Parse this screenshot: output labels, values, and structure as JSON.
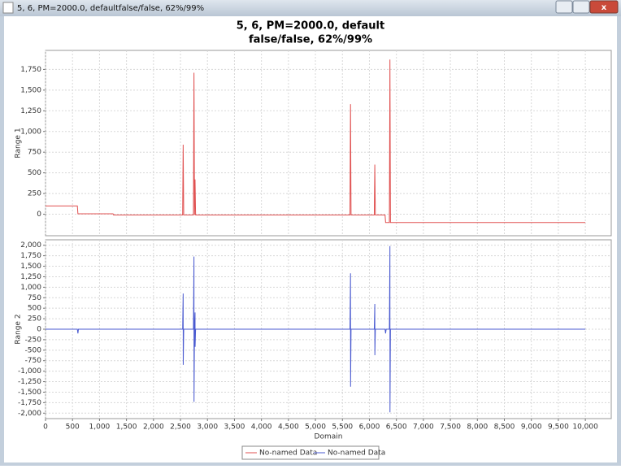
{
  "window": {
    "title": "5, 6, PM=2000.0, defaultfalse/false, 62%/99%"
  },
  "title_lines": [
    "5, 6, PM=2000.0, default",
    "false/false, 62%/99%"
  ],
  "chart_data": [
    {
      "type": "line",
      "ylabel": "Range 1",
      "grid": true,
      "x": [
        0,
        590,
        600,
        1250,
        1260,
        2540,
        2550,
        2560,
        2740,
        2750,
        2760,
        2770,
        2780,
        5640,
        5650,
        5660,
        6090,
        6100,
        6110,
        6290,
        6300,
        6370,
        6380,
        6390,
        10000
      ],
      "series": [
        {
          "name": "No-named Data",
          "color": "#e05050",
          "values": [
            100,
            100,
            5,
            5,
            -10,
            -10,
            840,
            -10,
            -10,
            1710,
            -10,
            420,
            -10,
            -10,
            1330,
            -10,
            -10,
            600,
            -10,
            -10,
            -100,
            -100,
            1870,
            -100,
            -100
          ]
        }
      ],
      "xlim": [
        0,
        10480
      ],
      "ylim": [
        -260,
        1980
      ],
      "yticks": [
        0,
        250,
        500,
        750,
        {
          "value": 1000,
          "label": "1,000"
        },
        {
          "value": 1250,
          "label": "1,250"
        },
        {
          "value": 1500,
          "label": "1,500"
        },
        {
          "value": 1750,
          "label": "1,750"
        }
      ]
    },
    {
      "type": "line",
      "ylabel": "Range 2",
      "xlabel": "Domain",
      "grid": true,
      "x": [
        0,
        590,
        600,
        610,
        2540,
        2550,
        2551,
        2560,
        2740,
        2750,
        2751,
        2760,
        2770,
        2771,
        2780,
        5640,
        5650,
        5651,
        5660,
        6090,
        6100,
        6101,
        6110,
        6290,
        6300,
        6310,
        6370,
        6380,
        6381,
        6390,
        10000
      ],
      "series": [
        {
          "name": "No-named Data",
          "color": "#4a5ad0",
          "values": [
            0,
            0,
            -100,
            0,
            0,
            850,
            -850,
            0,
            0,
            1730,
            -1730,
            0,
            400,
            -420,
            0,
            0,
            1330,
            -1370,
            0,
            0,
            600,
            -620,
            0,
            0,
            -100,
            0,
            0,
            1980,
            -1980,
            0,
            0
          ]
        }
      ],
      "xlim": [
        0,
        10480
      ],
      "ylim": [
        -2130,
        2130
      ],
      "yticks": [
        {
          "value": -2000,
          "label": "-2,000"
        },
        {
          "value": -1750,
          "label": "-1,750"
        },
        {
          "value": -1500,
          "label": "-1,500"
        },
        {
          "value": -1250,
          "label": "-1,250"
        },
        {
          "value": -1000,
          "label": "-1,000"
        },
        -750,
        -500,
        -250,
        0,
        250,
        500,
        750,
        {
          "value": 1000,
          "label": "1,000"
        },
        {
          "value": 1250,
          "label": "1,250"
        },
        {
          "value": 1500,
          "label": "1,500"
        },
        {
          "value": 1750,
          "label": "1,750"
        },
        {
          "value": 2000,
          "label": "2,000"
        }
      ],
      "xticks": [
        0,
        500,
        {
          "value": 1000,
          "label": "1,000"
        },
        {
          "value": 1500,
          "label": "1,500"
        },
        {
          "value": 2000,
          "label": "2,000"
        },
        {
          "value": 2500,
          "label": "2,500"
        },
        {
          "value": 3000,
          "label": "3,000"
        },
        {
          "value": 3500,
          "label": "3,500"
        },
        {
          "value": 4000,
          "label": "4,000"
        },
        {
          "value": 4500,
          "label": "4,500"
        },
        {
          "value": 5000,
          "label": "5,000"
        },
        {
          "value": 5500,
          "label": "5,500"
        },
        {
          "value": 6000,
          "label": "6,000"
        },
        {
          "value": 6500,
          "label": "6,500"
        },
        {
          "value": 7000,
          "label": "7,000"
        },
        {
          "value": 7500,
          "label": "7,500"
        },
        {
          "value": 8000,
          "label": "8,000"
        },
        {
          "value": 8500,
          "label": "8,500"
        },
        {
          "value": 9000,
          "label": "9,000"
        },
        {
          "value": 9500,
          "label": "9,500"
        },
        {
          "value": 10000,
          "label": "10,000"
        }
      ]
    }
  ]
}
